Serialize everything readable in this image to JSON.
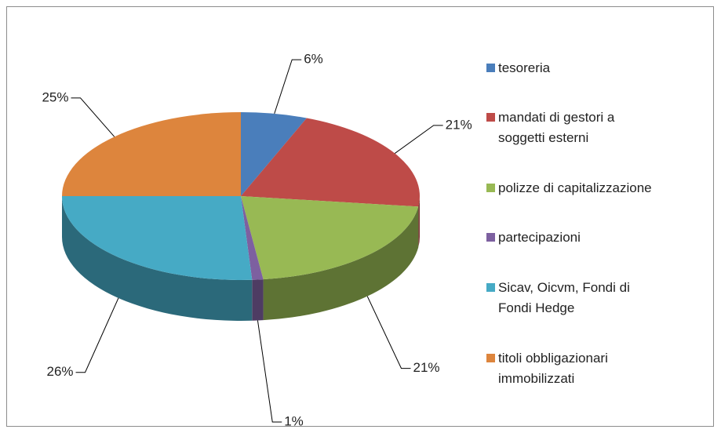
{
  "chart_data": {
    "type": "pie3d",
    "categories": [
      "tesoreria",
      "mandati di gestori a soggetti esterni",
      "polizze di capitalizzazione",
      "partecipazioni",
      "Sicav, Oicvm, Fondi di Fondi Hedge",
      "titoli obbligazionari immobilizzati"
    ],
    "values": [
      6,
      21,
      21,
      1,
      26,
      25
    ],
    "value_labels": [
      "6%",
      "21%",
      "21%",
      "1%",
      "26%",
      "25%"
    ],
    "colors": [
      "#4a7ebb",
      "#be4b48",
      "#98b954",
      "#7d60a0",
      "#46aac5",
      "#dd853d"
    ],
    "legend": "right"
  }
}
